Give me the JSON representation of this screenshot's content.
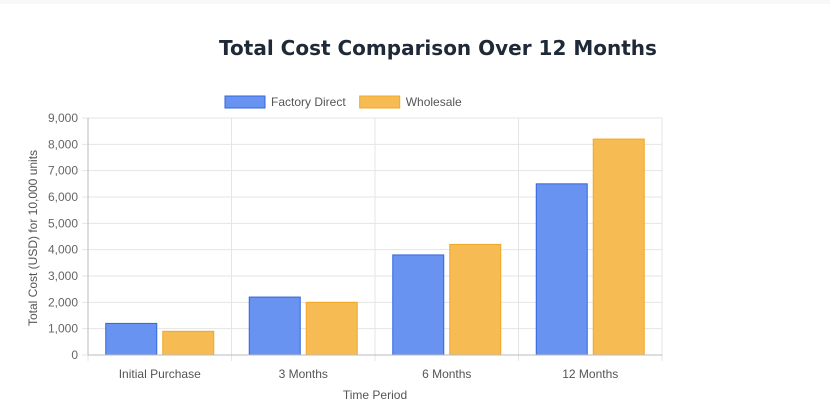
{
  "chart_data": {
    "type": "bar",
    "title": "Total Cost Comparison Over 12 Months",
    "xlabel": "Time Period",
    "ylabel": "Total Cost (USD) for 10,000 units",
    "categories": [
      "Initial Purchase",
      "3 Months",
      "6 Months",
      "12 Months"
    ],
    "series": [
      {
        "name": "Factory Direct",
        "values": [
          1200,
          2200,
          3800,
          6500
        ],
        "color": "#6993f0",
        "border": "#3366dd"
      },
      {
        "name": "Wholesale",
        "values": [
          900,
          2000,
          4200,
          8200
        ],
        "color": "#f6bb52",
        "border": "#f0a825"
      }
    ],
    "ylim": [
      0,
      9000
    ],
    "yticks": [
      "0",
      "1,000",
      "2,000",
      "3,000",
      "4,000",
      "5,000",
      "6,000",
      "7,000",
      "8,000",
      "9,000"
    ],
    "grid": true,
    "legend_position": "top"
  }
}
